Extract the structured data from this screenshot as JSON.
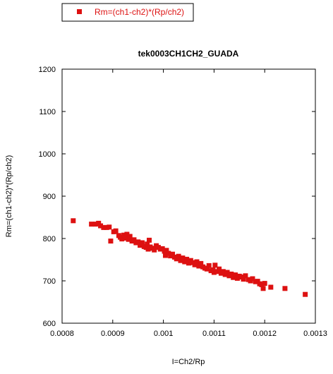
{
  "chart_data": {
    "type": "scatter",
    "title": "tek0003CH1CH2_GUADA",
    "xlabel": "I=Ch2/Rp",
    "ylabel": "Rm=(ch1-ch2)*(Rp/ch2)",
    "xlim": [
      0.0008,
      0.0013
    ],
    "ylim": [
      600,
      1200
    ],
    "xticks": [
      0.0008,
      0.0009,
      0.001,
      0.0011,
      0.0012,
      0.0013
    ],
    "xtick_labels": [
      "0.0008",
      "0.0009",
      "0.001",
      "0.0011",
      "0.0012",
      "0.0013"
    ],
    "yticks": [
      600,
      700,
      800,
      900,
      1000,
      1100,
      1200
    ],
    "ytick_labels": [
      "600",
      "700",
      "800",
      "900",
      "1000",
      "1100",
      "1200"
    ],
    "grid": false,
    "legend_position": "top-left",
    "series": [
      {
        "name": "Rm=(ch1-ch2)*(Rp/ch2)",
        "color": "#dd1111",
        "marker": "square",
        "points": [
          [
            0.000822,
            842
          ],
          [
            0.000858,
            834
          ],
          [
            0.000866,
            834
          ],
          [
            0.000872,
            836
          ],
          [
            0.000876,
            830
          ],
          [
            0.000882,
            826
          ],
          [
            0.000888,
            826
          ],
          [
            0.000893,
            827
          ],
          [
            0.000896,
            794
          ],
          [
            0.000902,
            816
          ],
          [
            0.000906,
            818
          ],
          [
            0.000912,
            807
          ],
          [
            0.000915,
            803
          ],
          [
            0.000918,
            799
          ],
          [
            0.000922,
            808
          ],
          [
            0.000925,
            801
          ],
          [
            0.000928,
            810
          ],
          [
            0.000931,
            798
          ],
          [
            0.000934,
            805
          ],
          [
            0.000938,
            794
          ],
          [
            0.000942,
            797
          ],
          [
            0.000946,
            790
          ],
          [
            0.00095,
            792
          ],
          [
            0.000954,
            784
          ],
          [
            0.000958,
            790
          ],
          [
            0.000962,
            781
          ],
          [
            0.000966,
            779
          ],
          [
            0.000968,
            787
          ],
          [
            0.00097,
            775
          ],
          [
            0.000972,
            796
          ],
          [
            0.000974,
            780
          ],
          [
            0.000978,
            777
          ],
          [
            0.000982,
            773
          ],
          [
            0.000986,
            783
          ],
          [
            0.00099,
            779
          ],
          [
            0.000994,
            775
          ],
          [
            0.000998,
            776
          ],
          [
            0.001002,
            770
          ],
          [
            0.001004,
            760
          ],
          [
            0.001006,
            772
          ],
          [
            0.00101,
            765
          ],
          [
            0.001014,
            759
          ],
          [
            0.001018,
            763
          ],
          [
            0.001022,
            756
          ],
          [
            0.001026,
            752
          ],
          [
            0.00103,
            758
          ],
          [
            0.001034,
            748
          ],
          [
            0.001038,
            754
          ],
          [
            0.001042,
            745
          ],
          [
            0.001046,
            751
          ],
          [
            0.00105,
            742
          ],
          [
            0.001054,
            748
          ],
          [
            0.001058,
            743
          ],
          [
            0.001062,
            738
          ],
          [
            0.001066,
            745
          ],
          [
            0.00107,
            735
          ],
          [
            0.001074,
            741
          ],
          [
            0.001078,
            733
          ],
          [
            0.001082,
            730
          ],
          [
            0.001086,
            728
          ],
          [
            0.00109,
            736
          ],
          [
            0.001094,
            724
          ],
          [
            0.001098,
            726
          ],
          [
            0.0011,
            720
          ],
          [
            0.001102,
            737
          ],
          [
            0.001106,
            722
          ],
          [
            0.00111,
            728
          ],
          [
            0.001114,
            718
          ],
          [
            0.001118,
            722
          ],
          [
            0.001122,
            715
          ],
          [
            0.001126,
            720
          ],
          [
            0.00113,
            712
          ],
          [
            0.001134,
            716
          ],
          [
            0.001138,
            708
          ],
          [
            0.001142,
            714
          ],
          [
            0.001146,
            706
          ],
          [
            0.00115,
            711
          ],
          [
            0.001154,
            709
          ],
          [
            0.001158,
            704
          ],
          [
            0.001162,
            712
          ],
          [
            0.001168,
            703
          ],
          [
            0.001172,
            700
          ],
          [
            0.001176,
            705
          ],
          [
            0.001182,
            698
          ],
          [
            0.001186,
            699
          ],
          [
            0.00119,
            693
          ],
          [
            0.001194,
            691
          ],
          [
            0.001197,
            682
          ],
          [
            0.0012,
            694
          ],
          [
            0.001212,
            685
          ],
          [
            0.00124,
            682
          ],
          [
            0.00128,
            668
          ]
        ]
      }
    ]
  }
}
